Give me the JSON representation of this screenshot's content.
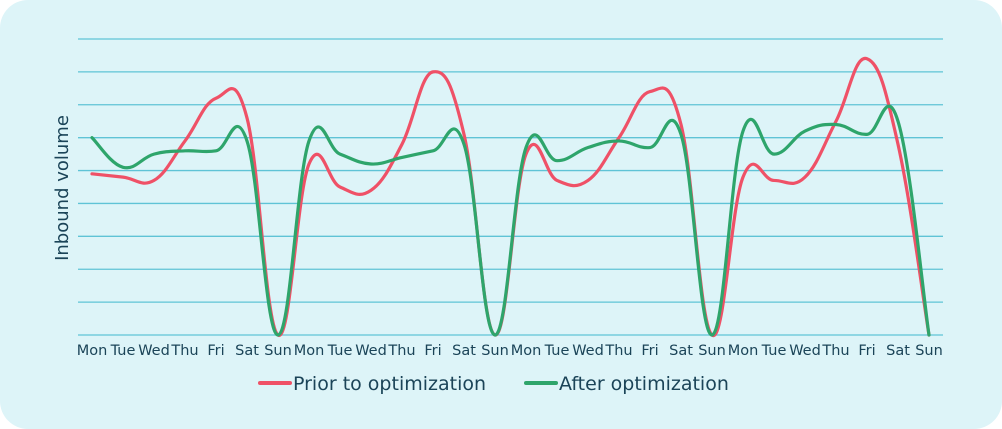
{
  "chart_data": {
    "type": "line",
    "title": "",
    "xlabel": "",
    "ylabel": "Inbound volume",
    "ylim": [
      0,
      9
    ],
    "grid": true,
    "legend_position": "bottom",
    "x": [
      "Mon",
      "Tue",
      "Wed",
      "Thu",
      "Fri",
      "Sat",
      "Sun",
      "Mon",
      "Tue",
      "Wed",
      "Thu",
      "Fri",
      "Sat",
      "Sun",
      "Mon",
      "Tue",
      "Wed",
      "Thu",
      "Fri",
      "Sat",
      "Sun",
      "Mon",
      "Tue",
      "Wed",
      "Thu",
      "Fri",
      "Sat",
      "Sun"
    ],
    "series": [
      {
        "name": "Prior to optimization",
        "color": "#ef5167",
        "values": [
          4.9,
          4.8,
          4.7,
          5.9,
          7.2,
          6.6,
          0.0,
          5.2,
          4.5,
          4.4,
          5.8,
          8.0,
          6.1,
          0.0,
          5.5,
          4.7,
          4.7,
          6.0,
          7.4,
          6.4,
          0.0,
          4.8,
          4.7,
          4.8,
          6.5,
          8.4,
          5.8,
          0.0
        ]
      },
      {
        "name": "After optimization",
        "color": "#2ea56b",
        "values": [
          6.0,
          5.1,
          5.5,
          5.6,
          5.6,
          5.9,
          0.0,
          5.9,
          5.5,
          5.2,
          5.4,
          5.6,
          5.8,
          0.0,
          5.7,
          5.3,
          5.7,
          5.9,
          5.7,
          6.1,
          0.0,
          6.2,
          5.5,
          6.2,
          6.4,
          6.1,
          6.5,
          0.0
        ]
      }
    ]
  }
}
